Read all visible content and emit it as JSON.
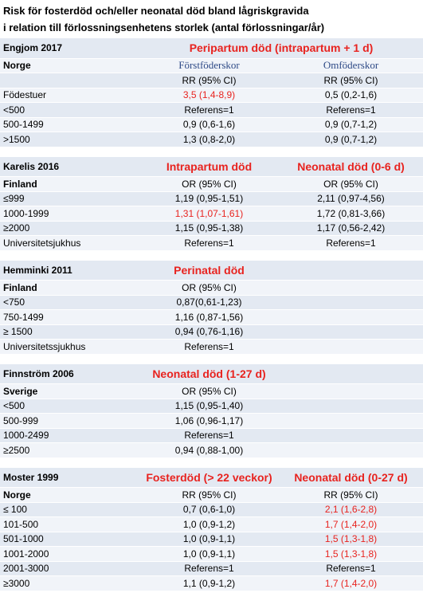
{
  "title": [
    "Risk för fosterdöd och/eller neonatal död bland lågriskgravida",
    "i relation till förlossningsenhetens storlek (antal förlossningar/år)"
  ],
  "sections": [
    {
      "study": "Engjom 2017",
      "outcomes": [
        "Peripartum död (intrapartum + 1 d)"
      ],
      "country": "Norge",
      "groups": [
        "Förstföderskor",
        "Omföderskor"
      ],
      "measure": [
        "RR (95% CI)",
        "RR (95% CI)"
      ],
      "rows": [
        {
          "label": "Födestuer",
          "values": [
            "3,5 (1,4-8,9)",
            "0,5 (0,2-1,6)"
          ]
        },
        {
          "label": "<500",
          "values": [
            "Referens=1",
            "Referens=1"
          ]
        },
        {
          "label": "500-1499",
          "values": [
            "0,9 (0,6-1,6)",
            "0,9 (0,7-1,2)"
          ]
        },
        {
          "label": ">1500",
          "values": [
            "1,3 (0,8-2,0)",
            "0,9 (0,7-1,2)"
          ]
        }
      ]
    },
    {
      "study": "Karelis 2016",
      "outcomes": [
        "Intrapartum död",
        "Neonatal död (0-6 d)"
      ],
      "country": "Finland",
      "measure": [
        "OR (95% CI)",
        "OR (95% CI)"
      ],
      "rows": [
        {
          "label": "≤999",
          "values": [
            "1,19 (0,95-1,51)",
            "2,11 (0,97-4,56)"
          ]
        },
        {
          "label": "1000-1999",
          "values": [
            "1,31 (1,07-1,61)",
            "1,72 (0,81-3,66)"
          ]
        },
        {
          "label": "≥2000",
          "values": [
            "1,15 (0,95-1,38)",
            "1,17 (0,56-2,42)"
          ]
        },
        {
          "label": "Universitetsjukhus",
          "values": [
            "Referens=1",
            "Referens=1"
          ]
        }
      ]
    },
    {
      "study": "Hemminki 2011",
      "outcomes": [
        "Perinatal död"
      ],
      "country": "Finland",
      "measure": [
        "OR (95% CI)"
      ],
      "rows": [
        {
          "label": "<750",
          "values": [
            "0,87(0,61-1,23)"
          ]
        },
        {
          "label": "750-1499",
          "values": [
            "1,16 (0,87-1,56)"
          ]
        },
        {
          "label": "≥ 1500",
          "values": [
            "0,94 (0,76-1,16)"
          ]
        },
        {
          "label": "Universitetssjukhus",
          "values": [
            "Referens=1"
          ]
        }
      ]
    },
    {
      "study": "Finnström 2006",
      "outcomes": [
        "Neonatal död (1-27 d)"
      ],
      "country": "Sverige",
      "measure": [
        "OR (95% CI)"
      ],
      "rows": [
        {
          "label": "<500",
          "values": [
            "1,15 (0,95-1,40)"
          ]
        },
        {
          "label": "500-999",
          "values": [
            "1,06 (0,96-1,17)"
          ]
        },
        {
          "label": "1000-2499",
          "values": [
            "Referens=1"
          ]
        },
        {
          "label": "≥2500",
          "values": [
            "0,94 (0,88-1,00)"
          ]
        }
      ]
    },
    {
      "study": "Moster 1999",
      "outcomes": [
        "Fosterdöd (> 22 veckor)",
        "Neonatal död (0-27 d)"
      ],
      "country": "Norge",
      "measure": [
        "RR (95% CI)",
        "RR (95% CI)"
      ],
      "rows": [
        {
          "label": "≤ 100",
          "values": [
            "0,7 (0,6-1,0)",
            "2,1 (1,6-2,8)"
          ]
        },
        {
          "label": "101-500",
          "values": [
            "1,0 (0,9-1,2)",
            "1,7 (1,4-2,0)"
          ]
        },
        {
          "label": "501-1000",
          "values": [
            "1,0 (0,9-1,1)",
            "1,5 (1,3-1,8)"
          ]
        },
        {
          "label": "1001-2000",
          "values": [
            "1,0 (0,9-1,1)",
            "1,5 (1,3-1,8)"
          ]
        },
        {
          "label": "2001-3000",
          "values": [
            "Referens=1",
            "Referens=1"
          ]
        },
        {
          "label": "≥3000",
          "values": [
            "1,1 (0,9-1,2)",
            "1,7 (1,4-2,0)"
          ]
        }
      ]
    }
  ]
}
